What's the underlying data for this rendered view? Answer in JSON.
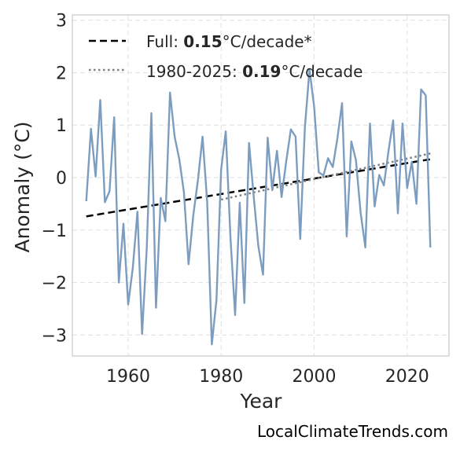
{
  "chart_data": {
    "type": "line",
    "title": "",
    "xlabel": "Year",
    "ylabel": "Anomaly (°C)",
    "xlim": [
      1948,
      2029
    ],
    "ylim": [
      -3.4,
      3.1
    ],
    "xticks": [
      1960,
      1980,
      2000,
      2020
    ],
    "yticks": [
      -3,
      -2,
      -1,
      0,
      1,
      2,
      3
    ],
    "ytick_labels": [
      "−3",
      "−2",
      "−1",
      "0",
      "1",
      "2",
      "3"
    ],
    "grid": true,
    "legend_position": "top-left",
    "series": [
      {
        "name": "",
        "color": "#7c9dbf",
        "x": [
          1951,
          1952,
          1953,
          1954,
          1955,
          1956,
          1957,
          1958,
          1959,
          1960,
          1961,
          1962,
          1963,
          1964,
          1965,
          1966,
          1967,
          1968,
          1969,
          1970,
          1971,
          1972,
          1973,
          1974,
          1975,
          1976,
          1977,
          1978,
          1979,
          1980,
          1981,
          1982,
          1983,
          1984,
          1985,
          1986,
          1987,
          1988,
          1989,
          1990,
          1991,
          1992,
          1993,
          1994,
          1995,
          1996,
          1997,
          1998,
          1999,
          2000,
          2001,
          2002,
          2003,
          2004,
          2005,
          2006,
          2007,
          2008,
          2009,
          2010,
          2011,
          2012,
          2013,
          2014,
          2015,
          2016,
          2017,
          2018,
          2019,
          2020,
          2021,
          2022,
          2023,
          2024,
          2025
        ],
        "y": [
          -0.45,
          0.93,
          0.02,
          1.48,
          -0.47,
          -0.26,
          1.15,
          -2.0,
          -0.88,
          -2.42,
          -1.72,
          -0.65,
          -2.98,
          -1.36,
          1.23,
          -2.48,
          -0.39,
          -0.83,
          1.62,
          0.78,
          0.35,
          -0.28,
          -1.65,
          -0.72,
          -0.05,
          0.78,
          -0.47,
          -3.18,
          -2.33,
          0.15,
          0.88,
          -1.15,
          -2.62,
          -0.48,
          -2.39,
          0.66,
          -0.35,
          -1.3,
          -1.85,
          0.76,
          -0.24,
          0.51,
          -0.37,
          0.31,
          0.92,
          0.78,
          -1.17,
          0.95,
          2.06,
          1.35,
          0.1,
          0.04,
          0.37,
          0.2,
          0.75,
          1.42,
          -1.12,
          0.69,
          0.33,
          -0.67,
          -1.33,
          1.03,
          -0.55,
          0.05,
          -0.15,
          0.51,
          1.09,
          -0.68,
          1.03,
          -0.2,
          0.3,
          -0.5,
          1.68,
          1.57,
          -1.33
        ]
      }
    ],
    "trendlines": [
      {
        "label_prefix": "Full: ",
        "label_value": "0.15",
        "label_suffix": "°C/decade*",
        "style": "dashed",
        "color": "#000000",
        "x": [
          1951,
          2025
        ],
        "y": [
          -0.74,
          0.35
        ]
      },
      {
        "label_prefix": "1980-2025: ",
        "label_value": "0.19",
        "label_suffix": "°C/decade",
        "style": "dotted",
        "color": "#7f7f7f",
        "x": [
          1980,
          2025
        ],
        "y": [
          -0.42,
          0.46
        ]
      }
    ]
  },
  "watermark": "LocalClimateTrends.com"
}
